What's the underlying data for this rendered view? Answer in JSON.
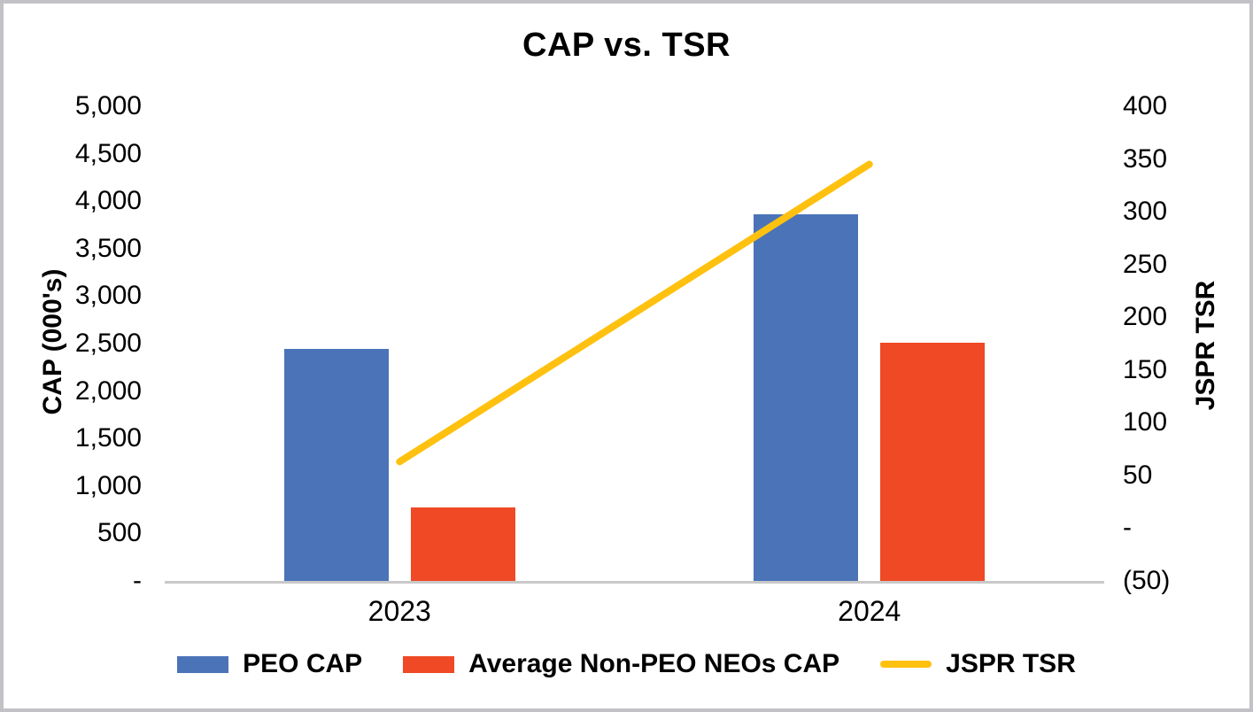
{
  "title": "CAP vs. TSR",
  "colors": {
    "peo_bar": "#4B73B8",
    "neo_bar": "#EF4925",
    "tsr_line": "#FFC110",
    "axis_line": "#C9C9C9",
    "frame_border": "#C2C2C6",
    "text": "#000000"
  },
  "axes": {
    "left": {
      "title": "CAP (000's)",
      "tick_labels": [
        "5,000",
        "4,500",
        "4,000",
        "3,500",
        "3,000",
        "2,500",
        "2,000",
        "1,500",
        "1,000",
        "500",
        "-"
      ],
      "range": [
        0,
        5000
      ]
    },
    "right": {
      "title": "JSPR TSR",
      "tick_labels": [
        "400",
        "350",
        "300",
        "250",
        "200",
        "150",
        "100",
        "50",
        "-",
        "(50)"
      ],
      "range": [
        -50,
        400
      ]
    },
    "x": {
      "categories": [
        "2023",
        "2024"
      ]
    }
  },
  "legend": {
    "items": [
      {
        "label": "PEO CAP",
        "swatch": "bar",
        "color": "#4B73B8"
      },
      {
        "label": "Average Non-PEO NEOs CAP",
        "swatch": "bar",
        "color": "#EF4925"
      },
      {
        "label": "JSPR TSR",
        "swatch": "line",
        "color": "#FFC110"
      }
    ]
  },
  "chart_data": {
    "type": "bar",
    "title": "CAP vs. TSR",
    "categories": [
      "2023",
      "2024"
    ],
    "series": [
      {
        "name": "PEO CAP",
        "type": "bar",
        "axis": "left",
        "color": "#4B73B8",
        "values": [
          2440,
          3860
        ]
      },
      {
        "name": "Average Non-PEO NEOs CAP",
        "type": "bar",
        "axis": "left",
        "color": "#EF4925",
        "values": [
          770,
          2510
        ]
      },
      {
        "name": "JSPR TSR",
        "type": "line",
        "axis": "right",
        "color": "#FFC110",
        "values": [
          63,
          345
        ]
      }
    ],
    "xlabel": "",
    "ylabel_left": "CAP (000's)",
    "ylabel_right": "JSPR TSR",
    "ylim_left": [
      0,
      5000
    ],
    "ylim_right": [
      -50,
      400
    ],
    "grid": false,
    "legend_position": "bottom"
  }
}
